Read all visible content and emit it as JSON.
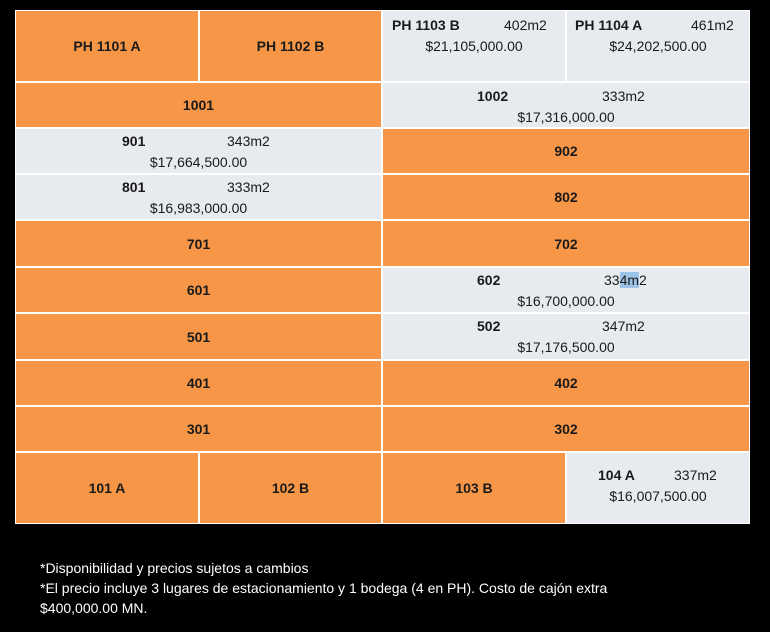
{
  "units": {
    "ph1101a": "PH  1101 A",
    "ph1102b": "PH  1102 B",
    "ph1103b": {
      "unit": "PH  1103 B",
      "area": "402m2",
      "price": "$21,105,000.00"
    },
    "ph1104a": {
      "unit": "PH  1104 A",
      "area": "461m2",
      "price": "$24,202,500.00"
    },
    "u1001": "1001",
    "u1002": {
      "unit": "1002",
      "area": "333m2",
      "price": "$17,316,000.00"
    },
    "u901": {
      "unit": "901",
      "area": "343m2",
      "price": "$17,664,500.00"
    },
    "u902": "902",
    "u801": {
      "unit": "801",
      "area": "333m2",
      "price": "$16,983,000.00"
    },
    "u802": "802",
    "u701": "701",
    "u702": "702",
    "u601": "601",
    "u602": {
      "unit": "602",
      "area_a": "33",
      "area_b": "4m",
      "area_c": "2",
      "price": "$16,700,000.00"
    },
    "u501": "501",
    "u502": {
      "unit": "502",
      "area": "347m2",
      "price": "$17,176,500.00"
    },
    "u401": "401",
    "u402": "402",
    "u301": "301",
    "u302": "302",
    "u101a": "101 A",
    "u102b": "102 B",
    "u103b": "103 B",
    "u104a": {
      "unit": "104 A",
      "area": "337m2",
      "price": "$16,007,500.00"
    }
  },
  "colors": {
    "sold": "#f79646",
    "available": "#e7eaef",
    "background": "#000000"
  },
  "notes": [
    "*Disponibilidad y precios sujetos a cambios",
    "*El precio incluye 3 lugares de estacionamiento y 1 bodega (4 en PH). Costo de cajón extra",
    "$400,000.00 MN."
  ]
}
